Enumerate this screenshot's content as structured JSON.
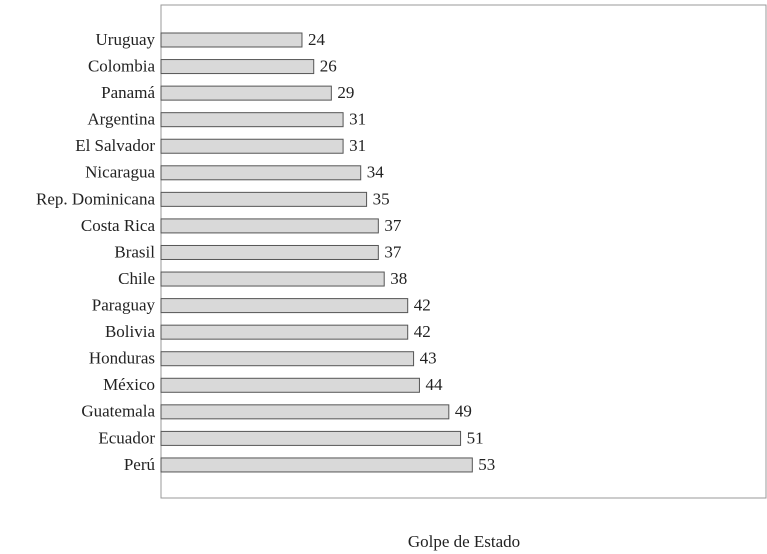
{
  "chart_data": {
    "type": "bar",
    "orientation": "horizontal",
    "xlabel": "Golpe de Estado",
    "categories": [
      "Uruguay",
      "Colombia",
      "Panamá",
      "Argentina",
      "El Salvador",
      "Nicaragua",
      "Rep. Dominicana",
      "Costa Rica",
      "Brasil",
      "Chile",
      "Paraguay",
      "Bolivia",
      "Honduras",
      "México",
      "Guatemala",
      "Ecuador",
      "Perú"
    ],
    "values": [
      24,
      26,
      29,
      31,
      31,
      34,
      35,
      37,
      37,
      38,
      42,
      42,
      43,
      44,
      49,
      51,
      53
    ],
    "color": "#d9d9d9",
    "xlim": [
      0,
      103
    ]
  }
}
